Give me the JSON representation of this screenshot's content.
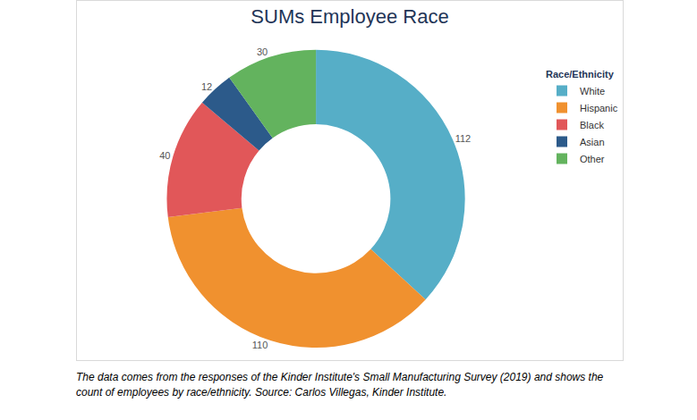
{
  "chart_data": {
    "type": "pie",
    "title": "SUMs Employee Race",
    "legend_title": "Race/Ethnicity",
    "categories": [
      "White",
      "Hispanic",
      "Black",
      "Asian",
      "Other"
    ],
    "values": [
      112,
      110,
      40,
      12,
      30
    ],
    "colors": [
      "#56aec7",
      "#f0912f",
      "#e15759",
      "#2c5a8a",
      "#63b35e"
    ],
    "data_labels": true,
    "legend": "top right",
    "caption": "The data comes from the responses of the Kinder Institute's Small Manufacturing Survey (2019) and shows the count of employees by race/ethnicity. Source: Carlos Villegas, Kinder Institute."
  }
}
